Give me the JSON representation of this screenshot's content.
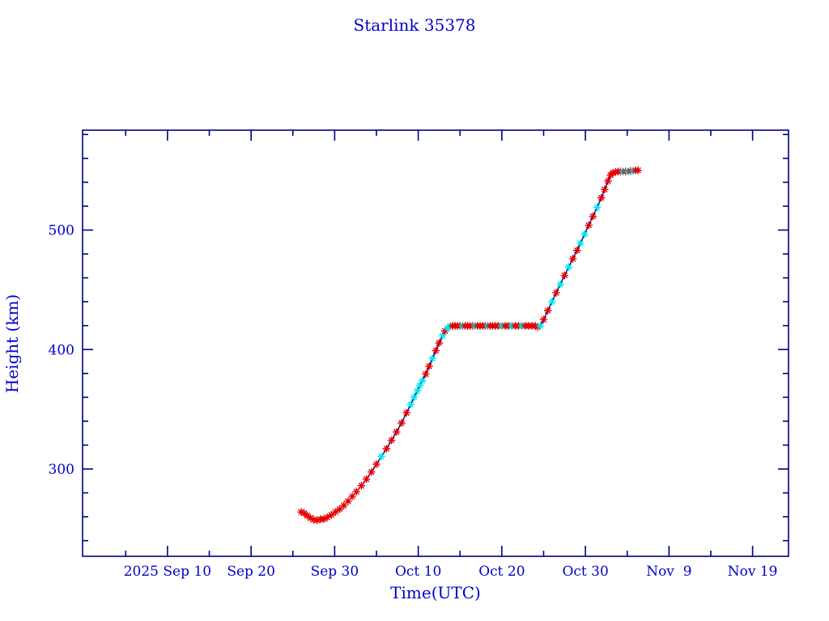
{
  "window": {
    "background_color": "#ffffff"
  },
  "chart_data": {
    "type": "line",
    "title": "Starlink 35378",
    "xlabel": "Time(UTC)",
    "ylabel": "Height (km)",
    "x_unit": "days relative to 2025 Sep 10 (UTC)",
    "y_unit": "km",
    "xlim": [
      -10.16,
      74.3
    ],
    "ylim": [
      226.9,
      583.6
    ],
    "grid": false,
    "legend": "none",
    "x_major_ticks": [
      {
        "t": 0,
        "label": "2025 Sep 10"
      },
      {
        "t": 10,
        "label": "Sep 20"
      },
      {
        "t": 20,
        "label": "Sep 30"
      },
      {
        "t": 30,
        "label": "Oct 10"
      },
      {
        "t": 40,
        "label": "Oct 20"
      },
      {
        "t": 50,
        "label": "Oct 30"
      },
      {
        "t": 60,
        "label": "Nov  9"
      },
      {
        "t": 70,
        "label": "Nov 19"
      }
    ],
    "x_minor_ticks": [
      -5,
      5,
      15,
      25,
      35,
      45,
      55,
      65
    ],
    "y_major_ticks": [
      {
        "v": 300,
        "label": "300"
      },
      {
        "v": 400,
        "label": "400"
      },
      {
        "v": 500,
        "label": "500"
      }
    ],
    "y_minor_ticks": [
      240,
      260,
      280,
      320,
      340,
      360,
      380,
      420,
      440,
      460,
      480,
      520,
      540,
      560,
      580
    ],
    "colors": {
      "frame": "#000080",
      "text": "#0000cd",
      "line": "#00008b",
      "marker_red": "#e60000",
      "marker_cyan": "#00e5ee",
      "background": "#ffffff"
    },
    "marker_style": "asterisk",
    "series_note": "satellite height vs time; t = days since 2025 Sep 10; third field is marker color r=red c=cyan",
    "points": [
      [
        16.0,
        264,
        "r"
      ],
      [
        16.35,
        263,
        "r"
      ],
      [
        16.7,
        261,
        "r"
      ],
      [
        17.1,
        259,
        "r"
      ],
      [
        17.5,
        257.5,
        "r"
      ],
      [
        17.9,
        257,
        "r"
      ],
      [
        18.3,
        258,
        "r"
      ],
      [
        18.7,
        258,
        "r"
      ],
      [
        19.1,
        259.5,
        "r"
      ],
      [
        19.6,
        261.5,
        "r"
      ],
      [
        20.1,
        264,
        "r"
      ],
      [
        20.6,
        266.5,
        "r"
      ],
      [
        21.1,
        269.5,
        "r"
      ],
      [
        21.6,
        273,
        "r"
      ],
      [
        22.1,
        277,
        "r"
      ],
      [
        22.6,
        281,
        "r"
      ],
      [
        23.2,
        286,
        "r"
      ],
      [
        23.8,
        291.5,
        "r"
      ],
      [
        24.4,
        297.5,
        "r"
      ],
      [
        25.0,
        304,
        "r"
      ],
      [
        25.6,
        310.5,
        "c"
      ],
      [
        26.2,
        317,
        "r"
      ],
      [
        26.8,
        324,
        "r"
      ],
      [
        27.4,
        331,
        "r"
      ],
      [
        28.0,
        338.5,
        "r"
      ],
      [
        28.6,
        347,
        "r"
      ],
      [
        29.1,
        354,
        "c"
      ],
      [
        29.5,
        360,
        "c"
      ],
      [
        29.9,
        365.5,
        "c"
      ],
      [
        30.2,
        370,
        "c"
      ],
      [
        30.5,
        374,
        "c"
      ],
      [
        30.9,
        379.5,
        "r"
      ],
      [
        31.3,
        386,
        "r"
      ],
      [
        31.7,
        392.5,
        "c"
      ],
      [
        32.1,
        399,
        "r"
      ],
      [
        32.5,
        405.5,
        "r"
      ],
      [
        32.9,
        411.5,
        "c"
      ],
      [
        33.2,
        415.5,
        "r"
      ],
      [
        33.5,
        418,
        "c"
      ],
      [
        33.8,
        419.5,
        "c"
      ],
      [
        34.1,
        419.8,
        "r"
      ],
      [
        34.4,
        419.8,
        "r"
      ],
      [
        34.7,
        419.8,
        "r"
      ],
      [
        35.0,
        419.8,
        "r"
      ],
      [
        35.3,
        419.8,
        "c"
      ],
      [
        35.6,
        419.8,
        "r"
      ],
      [
        35.9,
        419.8,
        "r"
      ],
      [
        36.2,
        419.8,
        "r"
      ],
      [
        36.5,
        419.8,
        "r"
      ],
      [
        36.8,
        419.8,
        "c"
      ],
      [
        37.1,
        419.8,
        "r"
      ],
      [
        37.4,
        419.8,
        "r"
      ],
      [
        37.7,
        419.8,
        "r"
      ],
      [
        38.0,
        419.8,
        "r"
      ],
      [
        38.3,
        419.8,
        "c"
      ],
      [
        38.6,
        419.8,
        "r"
      ],
      [
        38.9,
        419.8,
        "r"
      ],
      [
        39.2,
        419.8,
        "r"
      ],
      [
        39.6,
        419.8,
        "r"
      ],
      [
        40.0,
        419.8,
        "c"
      ],
      [
        40.4,
        419.8,
        "r"
      ],
      [
        40.8,
        419.8,
        "r"
      ],
      [
        41.2,
        419.8,
        "c"
      ],
      [
        41.6,
        419.8,
        "r"
      ],
      [
        42.0,
        419.8,
        "r"
      ],
      [
        42.4,
        419.8,
        "c"
      ],
      [
        42.8,
        419.8,
        "r"
      ],
      [
        43.2,
        419.8,
        "r"
      ],
      [
        43.6,
        419.8,
        "r"
      ],
      [
        44.0,
        419.8,
        "r"
      ],
      [
        44.3,
        418.8,
        "r"
      ],
      [
        44.6,
        419.8,
        "c"
      ],
      [
        45.0,
        425,
        "r"
      ],
      [
        45.5,
        432.5,
        "r"
      ],
      [
        46.0,
        440,
        "c"
      ],
      [
        46.5,
        447.5,
        "r"
      ],
      [
        47.0,
        454.5,
        "c"
      ],
      [
        47.5,
        462,
        "r"
      ],
      [
        48.0,
        469,
        "c"
      ],
      [
        48.5,
        476,
        "r"
      ],
      [
        49.0,
        483,
        "r"
      ],
      [
        49.4,
        489,
        "c"
      ],
      [
        49.9,
        496.5,
        "c"
      ],
      [
        50.4,
        504,
        "r"
      ],
      [
        50.9,
        511.5,
        "r"
      ],
      [
        51.4,
        519,
        "c"
      ],
      [
        51.9,
        527,
        "r"
      ],
      [
        52.3,
        534,
        "r"
      ],
      [
        52.7,
        541,
        "r"
      ],
      [
        53.0,
        546,
        "r"
      ],
      [
        53.3,
        548,
        "r"
      ],
      [
        53.6,
        548.5,
        "r"
      ],
      [
        53.9,
        549,
        "r"
      ],
      [
        54.2,
        549,
        "r"
      ],
      [
        54.5,
        549,
        "c"
      ],
      [
        54.8,
        549,
        "r"
      ],
      [
        55.1,
        549,
        "c"
      ],
      [
        55.4,
        549.5,
        "r"
      ],
      [
        55.7,
        549.5,
        "c"
      ],
      [
        56.0,
        550,
        "r"
      ],
      [
        56.3,
        550,
        "r"
      ]
    ]
  }
}
